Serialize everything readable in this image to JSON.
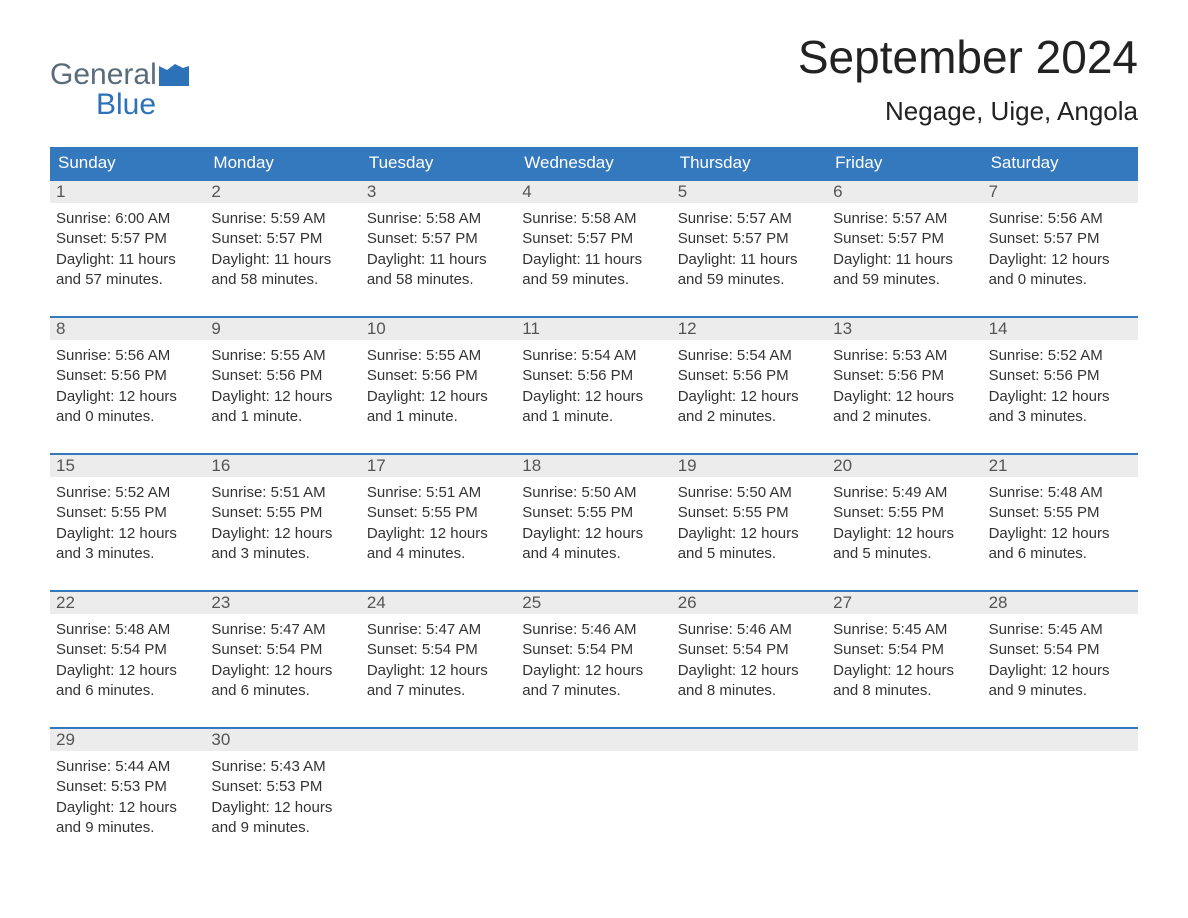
{
  "logo": {
    "top": "General",
    "bottom": "Blue"
  },
  "title": "September 2024",
  "subtitle": "Negage, Uige, Angola",
  "colors": {
    "header_bar": "#3478bd",
    "header_text": "#ffffff",
    "daynum_bg": "#ececec",
    "body_text": "#333333",
    "logo_gray": "#5a6b7a",
    "logo_blue": "#2d72b8",
    "page_bg": "#ffffff"
  },
  "typography": {
    "title_fontsize": 46,
    "subtitle_fontsize": 26,
    "weekday_fontsize": 17,
    "body_fontsize": 15
  },
  "weekdays": [
    "Sunday",
    "Monday",
    "Tuesday",
    "Wednesday",
    "Thursday",
    "Friday",
    "Saturday"
  ],
  "weeks": [
    [
      {
        "n": "1",
        "sr": "Sunrise: 6:00 AM",
        "ss": "Sunset: 5:57 PM",
        "d1": "Daylight: 11 hours",
        "d2": "and 57 minutes."
      },
      {
        "n": "2",
        "sr": "Sunrise: 5:59 AM",
        "ss": "Sunset: 5:57 PM",
        "d1": "Daylight: 11 hours",
        "d2": "and 58 minutes."
      },
      {
        "n": "3",
        "sr": "Sunrise: 5:58 AM",
        "ss": "Sunset: 5:57 PM",
        "d1": "Daylight: 11 hours",
        "d2": "and 58 minutes."
      },
      {
        "n": "4",
        "sr": "Sunrise: 5:58 AM",
        "ss": "Sunset: 5:57 PM",
        "d1": "Daylight: 11 hours",
        "d2": "and 59 minutes."
      },
      {
        "n": "5",
        "sr": "Sunrise: 5:57 AM",
        "ss": "Sunset: 5:57 PM",
        "d1": "Daylight: 11 hours",
        "d2": "and 59 minutes."
      },
      {
        "n": "6",
        "sr": "Sunrise: 5:57 AM",
        "ss": "Sunset: 5:57 PM",
        "d1": "Daylight: 11 hours",
        "d2": "and 59 minutes."
      },
      {
        "n": "7",
        "sr": "Sunrise: 5:56 AM",
        "ss": "Sunset: 5:57 PM",
        "d1": "Daylight: 12 hours",
        "d2": "and 0 minutes."
      }
    ],
    [
      {
        "n": "8",
        "sr": "Sunrise: 5:56 AM",
        "ss": "Sunset: 5:56 PM",
        "d1": "Daylight: 12 hours",
        "d2": "and 0 minutes."
      },
      {
        "n": "9",
        "sr": "Sunrise: 5:55 AM",
        "ss": "Sunset: 5:56 PM",
        "d1": "Daylight: 12 hours",
        "d2": "and 1 minute."
      },
      {
        "n": "10",
        "sr": "Sunrise: 5:55 AM",
        "ss": "Sunset: 5:56 PM",
        "d1": "Daylight: 12 hours",
        "d2": "and 1 minute."
      },
      {
        "n": "11",
        "sr": "Sunrise: 5:54 AM",
        "ss": "Sunset: 5:56 PM",
        "d1": "Daylight: 12 hours",
        "d2": "and 1 minute."
      },
      {
        "n": "12",
        "sr": "Sunrise: 5:54 AM",
        "ss": "Sunset: 5:56 PM",
        "d1": "Daylight: 12 hours",
        "d2": "and 2 minutes."
      },
      {
        "n": "13",
        "sr": "Sunrise: 5:53 AM",
        "ss": "Sunset: 5:56 PM",
        "d1": "Daylight: 12 hours",
        "d2": "and 2 minutes."
      },
      {
        "n": "14",
        "sr": "Sunrise: 5:52 AM",
        "ss": "Sunset: 5:56 PM",
        "d1": "Daylight: 12 hours",
        "d2": "and 3 minutes."
      }
    ],
    [
      {
        "n": "15",
        "sr": "Sunrise: 5:52 AM",
        "ss": "Sunset: 5:55 PM",
        "d1": "Daylight: 12 hours",
        "d2": "and 3 minutes."
      },
      {
        "n": "16",
        "sr": "Sunrise: 5:51 AM",
        "ss": "Sunset: 5:55 PM",
        "d1": "Daylight: 12 hours",
        "d2": "and 3 minutes."
      },
      {
        "n": "17",
        "sr": "Sunrise: 5:51 AM",
        "ss": "Sunset: 5:55 PM",
        "d1": "Daylight: 12 hours",
        "d2": "and 4 minutes."
      },
      {
        "n": "18",
        "sr": "Sunrise: 5:50 AM",
        "ss": "Sunset: 5:55 PM",
        "d1": "Daylight: 12 hours",
        "d2": "and 4 minutes."
      },
      {
        "n": "19",
        "sr": "Sunrise: 5:50 AM",
        "ss": "Sunset: 5:55 PM",
        "d1": "Daylight: 12 hours",
        "d2": "and 5 minutes."
      },
      {
        "n": "20",
        "sr": "Sunrise: 5:49 AM",
        "ss": "Sunset: 5:55 PM",
        "d1": "Daylight: 12 hours",
        "d2": "and 5 minutes."
      },
      {
        "n": "21",
        "sr": "Sunrise: 5:48 AM",
        "ss": "Sunset: 5:55 PM",
        "d1": "Daylight: 12 hours",
        "d2": "and 6 minutes."
      }
    ],
    [
      {
        "n": "22",
        "sr": "Sunrise: 5:48 AM",
        "ss": "Sunset: 5:54 PM",
        "d1": "Daylight: 12 hours",
        "d2": "and 6 minutes."
      },
      {
        "n": "23",
        "sr": "Sunrise: 5:47 AM",
        "ss": "Sunset: 5:54 PM",
        "d1": "Daylight: 12 hours",
        "d2": "and 6 minutes."
      },
      {
        "n": "24",
        "sr": "Sunrise: 5:47 AM",
        "ss": "Sunset: 5:54 PM",
        "d1": "Daylight: 12 hours",
        "d2": "and 7 minutes."
      },
      {
        "n": "25",
        "sr": "Sunrise: 5:46 AM",
        "ss": "Sunset: 5:54 PM",
        "d1": "Daylight: 12 hours",
        "d2": "and 7 minutes."
      },
      {
        "n": "26",
        "sr": "Sunrise: 5:46 AM",
        "ss": "Sunset: 5:54 PM",
        "d1": "Daylight: 12 hours",
        "d2": "and 8 minutes."
      },
      {
        "n": "27",
        "sr": "Sunrise: 5:45 AM",
        "ss": "Sunset: 5:54 PM",
        "d1": "Daylight: 12 hours",
        "d2": "and 8 minutes."
      },
      {
        "n": "28",
        "sr": "Sunrise: 5:45 AM",
        "ss": "Sunset: 5:54 PM",
        "d1": "Daylight: 12 hours",
        "d2": "and 9 minutes."
      }
    ],
    [
      {
        "n": "29",
        "sr": "Sunrise: 5:44 AM",
        "ss": "Sunset: 5:53 PM",
        "d1": "Daylight: 12 hours",
        "d2": "and 9 minutes."
      },
      {
        "n": "30",
        "sr": "Sunrise: 5:43 AM",
        "ss": "Sunset: 5:53 PM",
        "d1": "Daylight: 12 hours",
        "d2": "and 9 minutes."
      },
      null,
      null,
      null,
      null,
      null
    ]
  ]
}
